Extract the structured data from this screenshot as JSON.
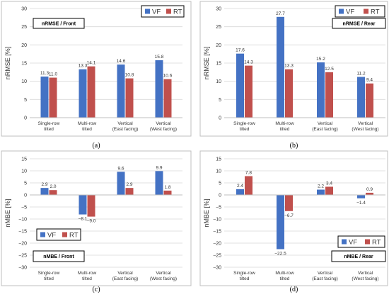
{
  "colors": {
    "vf": "#4472c4",
    "rt": "#c0504d",
    "grid": "#d9d9d9",
    "axis": "#bfbfbf",
    "frame": "#bfbfbf"
  },
  "legend": {
    "vf": "VF",
    "rt": "RT"
  },
  "chart_data": [
    {
      "type": "bar",
      "panel_label": "(a)",
      "tag": "nRMSE / Front",
      "ylabel": "nRMSE [%]",
      "ylim": [
        0,
        30
      ],
      "yticks": [
        0,
        5,
        10,
        15,
        20,
        25,
        30
      ],
      "categories": [
        [
          "Single-row",
          "tilted"
        ],
        [
          "Multi-row",
          "tilted"
        ],
        [
          "Vertical",
          "(East facing)"
        ],
        [
          "Vertical",
          "(West facing)"
        ]
      ],
      "series": [
        {
          "name": "VF",
          "values": [
            11.3,
            13.3,
            14.6,
            15.8
          ],
          "labels": [
            "11.3",
            "13.3",
            "14.6",
            "15.8"
          ]
        },
        {
          "name": "RT",
          "values": [
            11.0,
            14.1,
            10.8,
            10.6
          ],
          "labels": [
            "11.0",
            "14.1",
            "10.8",
            "10.6"
          ]
        }
      ],
      "legend_position": "top-right",
      "grid": true
    },
    {
      "type": "bar",
      "panel_label": "(b)",
      "tag": "nRMSE / Rear",
      "ylabel": "nRMSE [%]",
      "ylim": [
        0,
        30
      ],
      "yticks": [
        0,
        5,
        10,
        15,
        20,
        25,
        30
      ],
      "categories": [
        [
          "Single-row",
          "tilted"
        ],
        [
          "Multi-row",
          "tilted"
        ],
        [
          "Vertical",
          "(East facing)"
        ],
        [
          "Vertical",
          "(West facing)"
        ]
      ],
      "series": [
        {
          "name": "VF",
          "values": [
            17.6,
            27.7,
            15.2,
            11.2
          ],
          "labels": [
            "17.6",
            "27.7",
            "15.2",
            "11.2"
          ]
        },
        {
          "name": "RT",
          "values": [
            14.3,
            13.3,
            12.5,
            9.4
          ],
          "labels": [
            "14.3",
            "13.3",
            "12.5",
            "9.4"
          ]
        }
      ],
      "legend_position": "top-right",
      "grid": true
    },
    {
      "type": "bar",
      "panel_label": "(c)",
      "tag": "nMBE / Front",
      "ylabel": "nMBE [%]",
      "ylim": [
        -30,
        15
      ],
      "yticks": [
        -30,
        -25,
        -20,
        -15,
        -10,
        -5,
        0,
        5,
        10,
        15
      ],
      "categories": [
        [
          "Single-row",
          "tilted"
        ],
        [
          "Multi-row",
          "tilted"
        ],
        [
          "Vertical",
          "(East facing)"
        ],
        [
          "Vertical",
          "(West facing)"
        ]
      ],
      "series": [
        {
          "name": "VF",
          "values": [
            2.9,
            -8.1,
            9.6,
            9.9
          ],
          "labels": [
            "2.9",
            "−8.1",
            "9.6",
            "9.9"
          ]
        },
        {
          "name": "RT",
          "values": [
            2.0,
            -9.0,
            2.9,
            1.8
          ],
          "labels": [
            "2.0",
            "−9.0",
            "2.9",
            "1.8"
          ]
        }
      ],
      "legend_position": "bottom-left",
      "grid": true
    },
    {
      "type": "bar",
      "panel_label": "(d)",
      "tag": "nMBE / Rear",
      "ylabel": "nMBE [%]",
      "ylim": [
        -30,
        15
      ],
      "yticks": [
        -30,
        -25,
        -20,
        -15,
        -10,
        -5,
        0,
        5,
        10,
        15
      ],
      "categories": [
        [
          "Single-row",
          "tilted"
        ],
        [
          "Multi-row",
          "tilted"
        ],
        [
          "Vertical",
          "(East facing)"
        ],
        [
          "Vertical",
          "(West facing)"
        ]
      ],
      "series": [
        {
          "name": "VF",
          "values": [
            2.4,
            -22.5,
            2.2,
            -1.4
          ],
          "labels": [
            "2.4",
            "−22.5",
            "2.2",
            "−1.4"
          ]
        },
        {
          "name": "RT",
          "values": [
            7.8,
            -6.7,
            3.4,
            0.9
          ],
          "labels": [
            "7.8",
            "−6.7",
            "3.4",
            "0.9"
          ]
        }
      ],
      "legend_position": "bottom-right",
      "grid": true
    }
  ]
}
